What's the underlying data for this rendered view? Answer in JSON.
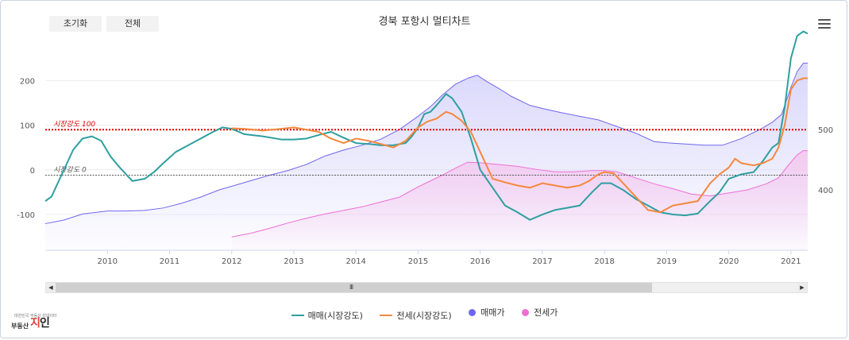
{
  "toolbar": {
    "reset_label": "초기화",
    "all_label": "전체"
  },
  "menu": {
    "icon": "hamburger-menu-icon"
  },
  "logo": {
    "small_text": "대한민국 부동산 빅데이터",
    "brand_prefix": "부동산",
    "brand_main_a": "지",
    "brand_main_b": "인"
  },
  "scroll": {
    "grip_label": "III",
    "left_arrow": "◀",
    "right_arrow": "▶"
  },
  "chart_data": {
    "type": "line",
    "title": "경북 포항시 멀티차트",
    "x_axis": {
      "ticks": [
        "2010",
        "2011",
        "2012",
        "2013",
        "2014",
        "2015",
        "2016",
        "2017",
        "2018",
        "2019",
        "2020",
        "2021"
      ],
      "range": [
        2009.0,
        2021.27
      ]
    },
    "y_left": {
      "ticks": [
        -100,
        0,
        100,
        200
      ],
      "range": [
        -180,
        270
      ]
    },
    "y_right": {
      "ticks": [
        400,
        500
      ],
      "range": [
        300,
        633
      ]
    },
    "plot_lines": [
      {
        "label": "시장강도 100",
        "value": 90,
        "color": "#e00000"
      },
      {
        "label": "시장강도 0",
        "value": -12,
        "color": "#555555"
      }
    ],
    "series": [
      {
        "name": "매매(시장강도)",
        "kind": "line",
        "axis": "left",
        "color": "#2e9fa0",
        "x": [
          2009.0,
          2009.1,
          2009.25,
          2009.45,
          2009.6,
          2009.75,
          2009.9,
          2010.05,
          2010.2,
          2010.4,
          2010.6,
          2010.75,
          2010.9,
          2011.1,
          2011.3,
          2011.5,
          2011.7,
          2011.85,
          2012.0,
          2012.2,
          2012.5,
          2012.8,
          2013.0,
          2013.2,
          2013.4,
          2013.6,
          2013.8,
          2014.0,
          2014.2,
          2014.4,
          2014.6,
          2014.8,
          2014.9,
          2015.0,
          2015.1,
          2015.2,
          2015.3,
          2015.45,
          2015.55,
          2015.7,
          2015.85,
          2016.0,
          2016.2,
          2016.4,
          2016.6,
          2016.8,
          2017.0,
          2017.2,
          2017.4,
          2017.6,
          2017.8,
          2017.95,
          2018.1,
          2018.3,
          2018.5,
          2018.7,
          2018.9,
          2019.1,
          2019.3,
          2019.5,
          2019.7,
          2019.85,
          2020.0,
          2020.2,
          2020.4,
          2020.55,
          2020.7,
          2020.8,
          2020.9,
          2021.0,
          2021.1,
          2021.2,
          2021.27
        ],
        "values": [
          -70,
          -60,
          -15,
          45,
          70,
          75,
          65,
          30,
          5,
          -25,
          -20,
          -5,
          15,
          40,
          55,
          70,
          85,
          95,
          92,
          80,
          75,
          68,
          68,
          70,
          78,
          85,
          72,
          60,
          58,
          55,
          55,
          60,
          75,
          95,
          125,
          130,
          145,
          170,
          160,
          130,
          70,
          0,
          -40,
          -80,
          -95,
          -112,
          -100,
          -90,
          -85,
          -80,
          -50,
          -30,
          -30,
          -45,
          -65,
          -80,
          -95,
          -100,
          -102,
          -98,
          -70,
          -50,
          -20,
          -10,
          -5,
          20,
          50,
          60,
          140,
          250,
          300,
          310,
          305
        ]
      },
      {
        "name": "전세(시장강도)",
        "kind": "line",
        "axis": "left",
        "color": "#f5883c",
        "x": [
          2012.0,
          2012.2,
          2012.5,
          2012.8,
          2013.0,
          2013.2,
          2013.4,
          2013.6,
          2013.8,
          2014.0,
          2014.2,
          2014.4,
          2014.6,
          2014.8,
          2015.0,
          2015.15,
          2015.3,
          2015.45,
          2015.55,
          2015.7,
          2015.85,
          2016.0,
          2016.2,
          2016.4,
          2016.6,
          2016.8,
          2017.0,
          2017.2,
          2017.4,
          2017.6,
          2017.75,
          2017.9,
          2018.0,
          2018.15,
          2018.3,
          2018.5,
          2018.7,
          2018.9,
          2019.1,
          2019.3,
          2019.5,
          2019.7,
          2019.85,
          2020.0,
          2020.1,
          2020.2,
          2020.4,
          2020.55,
          2020.7,
          2020.8,
          2020.9,
          2021.0,
          2021.1,
          2021.2,
          2021.27
        ],
        "values": [
          93,
          92,
          88,
          92,
          95,
          90,
          85,
          70,
          60,
          70,
          65,
          58,
          50,
          65,
          95,
          108,
          115,
          130,
          125,
          110,
          85,
          40,
          -20,
          -28,
          -35,
          -40,
          -30,
          -35,
          -40,
          -35,
          -25,
          -10,
          -5,
          -8,
          -30,
          -60,
          -90,
          -95,
          -80,
          -75,
          -70,
          -30,
          -10,
          5,
          25,
          15,
          10,
          15,
          25,
          50,
          100,
          180,
          200,
          205,
          205
        ]
      },
      {
        "name": "매매가",
        "kind": "area",
        "axis": "right",
        "color": "#6f67ee",
        "fill": "#d7d5fb",
        "x": [
          2009.0,
          2009.3,
          2009.6,
          2010.0,
          2010.3,
          2010.6,
          2010.9,
          2011.2,
          2011.5,
          2011.8,
          2012.0,
          2012.3,
          2012.6,
          2012.9,
          2013.2,
          2013.5,
          2013.8,
          2014.1,
          2014.4,
          2014.7,
          2015.0,
          2015.2,
          2015.4,
          2015.6,
          2015.8,
          2015.95,
          2016.1,
          2016.3,
          2016.5,
          2016.8,
          2017.0,
          2017.3,
          2017.6,
          2017.9,
          2018.2,
          2018.5,
          2018.8,
          2019.0,
          2019.3,
          2019.6,
          2019.9,
          2020.2,
          2020.5,
          2020.7,
          2020.85,
          2021.0,
          2021.1,
          2021.2,
          2021.27
        ],
        "values": [
          344,
          350,
          360,
          365,
          365,
          366,
          370,
          378,
          388,
          400,
          406,
          415,
          424,
          432,
          442,
          456,
          466,
          474,
          484,
          500,
          522,
          538,
          558,
          575,
          585,
          590,
          580,
          568,
          555,
          540,
          535,
          528,
          522,
          516,
          505,
          494,
          480,
          478,
          476,
          474,
          474,
          485,
          500,
          512,
          525,
          570,
          596,
          610,
          610
        ]
      },
      {
        "name": "전세가",
        "kind": "area",
        "axis": "right",
        "color": "#ee6ed6",
        "fill": "#f4c9ef",
        "x": [
          2012.0,
          2012.3,
          2012.6,
          2012.9,
          2013.2,
          2013.5,
          2013.8,
          2014.1,
          2014.4,
          2014.7,
          2015.0,
          2015.2,
          2015.4,
          2015.6,
          2015.8,
          2016.0,
          2016.3,
          2016.6,
          2016.9,
          2017.2,
          2017.5,
          2017.8,
          2018.0,
          2018.2,
          2018.5,
          2018.8,
          2019.1,
          2019.4,
          2019.7,
          2020.0,
          2020.3,
          2020.6,
          2020.8,
          2020.95,
          2021.1,
          2021.2,
          2021.27
        ],
        "values": [
          322,
          328,
          336,
          345,
          353,
          360,
          366,
          372,
          380,
          388,
          405,
          415,
          425,
          436,
          446,
          445,
          442,
          439,
          434,
          430,
          430,
          432,
          432,
          430,
          420,
          410,
          402,
          393,
          390,
          395,
          400,
          410,
          420,
          440,
          458,
          465,
          465
        ]
      }
    ]
  }
}
